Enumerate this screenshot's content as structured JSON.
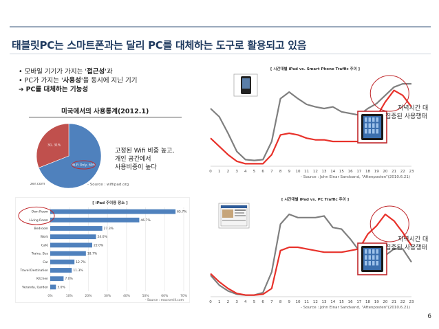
{
  "slide": {
    "title": "태블릿PC는 스마트폰과는 달리 PC를 대체하는 도구로 활용되고 있음",
    "page_number": "6"
  },
  "bullets": {
    "b1_pre": "모바일 기기가 가지는 '",
    "b1_bold": "접근성",
    "b1_post": "'과",
    "b2_pre": "PC가 가지는 '",
    "b2_bold": "사용성",
    "b2_post": "'을 동시에 지닌 기기",
    "b3": "PC를 대체하는 기능성"
  },
  "pie_section": {
    "title": "미국에서의 사용통계(2012.1)",
    "slices": [
      {
        "label": "Wi-Fi Only, 69%",
        "value": 69,
        "color": "#4f81bd"
      },
      {
        "label": "3G, 31%",
        "value": 31,
        "color": "#c0504d"
      }
    ],
    "note_line1": "고정된 Wifi 비중 높고,",
    "note_line2": "개인 공간에서",
    "note_line3": "사용비중이 높다",
    "corner_text": "zer.com",
    "source": "- Source : wifiipad.org"
  },
  "bar_section": {
    "chart_data": {
      "type": "bar",
      "orientation": "horizontal",
      "title": "[ iPad 주이용 장소 ]",
      "categories": [
        "Own Room",
        "Living Room",
        "Bedroom",
        "Work",
        "Café",
        "Trains, Bus",
        "Car",
        "Travel Destination",
        "Kitchen",
        "Veranda, Garden"
      ],
      "values": [
        65.7,
        46.7,
        27.3,
        24.0,
        22.0,
        18.7,
        12.7,
        11.3,
        7.0,
        3.0
      ],
      "value_labels": [
        "65.7%",
        "46.7%",
        "27.3%",
        "24.0%",
        "22.0%",
        "18.7%",
        "12.7%",
        "11.3%",
        "7.0%",
        "3.0%"
      ],
      "xticks": [
        "0%",
        "10%",
        "20%",
        "30%",
        "40%",
        "50%",
        "60%",
        "70%"
      ],
      "xlim": [
        0,
        70
      ],
      "source": "- Source : macromill.com",
      "bar_color": "#4f81bd"
    }
  },
  "traffic_top": {
    "chart_data": {
      "type": "line",
      "title": "[ 시간대별 iPad vs. Smart Phone Traffic 추이 ]",
      "x": [
        0,
        1,
        2,
        3,
        4,
        5,
        6,
        7,
        8,
        9,
        10,
        11,
        12,
        13,
        14,
        15,
        16,
        17,
        18,
        19,
        20,
        21,
        22,
        23
      ],
      "xticks": [
        "0",
        "1",
        "2",
        "3",
        "4",
        "5",
        "6",
        "7",
        "8",
        "9",
        "10",
        "11",
        "12",
        "13",
        "14",
        "15",
        "16",
        "17",
        "18",
        "19",
        "20",
        "21",
        "22",
        "23"
      ],
      "series": [
        {
          "name": "Smart Phone",
          "color": "#7f7f7f",
          "values": [
            70,
            60,
            40,
            18,
            8,
            7,
            8,
            30,
            82,
            90,
            82,
            75,
            72,
            70,
            72,
            66,
            64,
            62,
            70,
            76,
            86,
            96,
            100,
            100
          ]
        },
        {
          "name": "iPad",
          "color": "#e8322b",
          "values": [
            34,
            24,
            14,
            6,
            3,
            3,
            3,
            14,
            38,
            40,
            38,
            34,
            32,
            32,
            30,
            30,
            30,
            30,
            42,
            60,
            78,
            92,
            86,
            72
          ]
        }
      ],
      "source": "- Source : John Einar Sandvand, \"Aftenposten\"(2010.6.21)"
    },
    "note_line1": "저녁시간 대",
    "note_line2": "집중된 사용행태"
  },
  "traffic_bottom": {
    "chart_data": {
      "type": "line",
      "title": "[ 시간대별 iPad vs. PC Traffic 추이 ]",
      "x": [
        0,
        1,
        2,
        3,
        4,
        5,
        6,
        7,
        8,
        9,
        10,
        11,
        12,
        13,
        14,
        15,
        16,
        17,
        18,
        19,
        20,
        21,
        22,
        23
      ],
      "xticks": [
        "0",
        "1",
        "2",
        "3",
        "4",
        "5",
        "6",
        "7",
        "8",
        "9",
        "10",
        "11",
        "12",
        "13",
        "14",
        "15",
        "16",
        "17",
        "18",
        "19",
        "20",
        "21",
        "22",
        "23"
      ],
      "series": [
        {
          "name": "PC",
          "color": "#7f7f7f",
          "values": [
            26,
            14,
            7,
            3,
            2,
            2,
            5,
            30,
            88,
            100,
            96,
            96,
            96,
            98,
            84,
            82,
            70,
            56,
            46,
            46,
            50,
            58,
            58,
            42
          ]
        },
        {
          "name": "iPad",
          "color": "#e8322b",
          "values": [
            28,
            18,
            10,
            4,
            2,
            2,
            3,
            10,
            56,
            60,
            60,
            58,
            56,
            54,
            54,
            54,
            56,
            58,
            76,
            86,
            100,
            92,
            78,
            62
          ]
        }
      ],
      "source": "- Source : John Einar Sandvand, \"Aftenposten\"(2010.6.21)"
    },
    "note_line1": "저녁시간 대",
    "note_line2": "집중된 사용행태"
  }
}
